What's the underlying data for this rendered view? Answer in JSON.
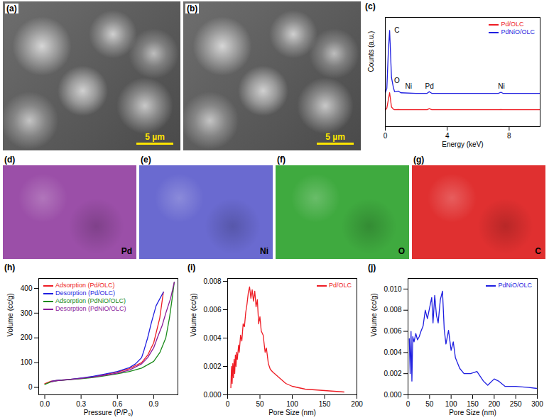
{
  "images": [
    {
      "panel": "(a)",
      "scale_bar": "5 µm"
    },
    {
      "panel": "(b)",
      "scale_bar": "5 µm"
    }
  ],
  "element_maps": [
    {
      "panel": "(d)",
      "label": "Pd",
      "color": "#9b4fa8"
    },
    {
      "panel": "(e)",
      "label": "Ni",
      "color": "#6a6ad0"
    },
    {
      "panel": "(f)",
      "label": "O",
      "color": "#3faa3f"
    },
    {
      "panel": "(g)",
      "label": "C",
      "color": "#e03030"
    }
  ],
  "chart_data": [
    {
      "panel": "(c)",
      "type": "line",
      "x_label": "Energy (keV)",
      "y_label": "Counts (a.u.)",
      "xlim": [
        0,
        10
      ],
      "xticks": [
        0,
        4,
        8
      ],
      "ylim": [
        0,
        100
      ],
      "tick_labels": "x",
      "legend": "top-right",
      "x": [
        0,
        0.1,
        0.2,
        0.28,
        0.4,
        0.52,
        0.6,
        0.85,
        1.0,
        2.0,
        2.7,
        2.84,
        3.0,
        4,
        6,
        7.3,
        7.47,
        7.6,
        8,
        10
      ],
      "series": [
        {
          "name": "Pd/OLC",
          "color": "#ee1c24",
          "values": [
            15,
            17,
            25,
            31,
            18,
            16,
            15.5,
            15.6,
            15.5,
            15.5,
            15.5,
            16.5,
            15.5,
            15.5,
            15.5,
            15.5,
            15.6,
            15.5,
            15.5,
            15.5
          ]
        },
        {
          "name": "PdNiO/OLC",
          "color": "#1f1fe0",
          "values": [
            31,
            35,
            70,
            88,
            45,
            36,
            32,
            32.5,
            31,
            30.5,
            30.5,
            32,
            30.5,
            30.5,
            30.5,
            30.5,
            31.5,
            30.5,
            30.5,
            30.5
          ]
        }
      ],
      "annotations": [
        {
          "text": "C",
          "x": 0.75,
          "y": 88
        },
        {
          "text": "O",
          "x": 0.75,
          "y": 42
        },
        {
          "text": "Ni",
          "x": 1.5,
          "y": 37
        },
        {
          "text": "Pd",
          "x": 2.85,
          "y": 37
        },
        {
          "text": "Ni",
          "x": 7.5,
          "y": 37
        }
      ]
    },
    {
      "panel": "(h)",
      "type": "line",
      "x_label": "Pressure (P/P₀)",
      "y_label": "Volume (cc/g)",
      "xlim": [
        -0.05,
        1.1
      ],
      "xticks": [
        {
          "value": 0,
          "label": "0.0"
        },
        {
          "value": 0.3,
          "label": "0.3"
        },
        {
          "value": 0.6,
          "label": "0.6"
        },
        {
          "value": 0.9,
          "label": "0.9"
        }
      ],
      "ylim": [
        -30,
        440
      ],
      "yticks": [
        0,
        100,
        200,
        300,
        400
      ],
      "legend": "top-left",
      "series": [
        {
          "name": "Adsorption (Pd/OLC)",
          "color": "#ee1c24",
          "x": [
            0,
            0.05,
            0.1,
            0.2,
            0.3,
            0.4,
            0.5,
            0.6,
            0.7,
            0.8,
            0.85,
            0.9,
            0.95,
            0.98
          ],
          "values": [
            15,
            25,
            28,
            32,
            37,
            43,
            52,
            62,
            76,
            100,
            130,
            180,
            280,
            385
          ]
        },
        {
          "name": "Desorption (Pd/OLC)",
          "color": "#1f1fe0",
          "x": [
            0.98,
            0.92,
            0.88,
            0.85,
            0.82,
            0.8,
            0.75,
            0.7,
            0.6,
            0.5,
            0.4,
            0.3,
            0.2,
            0.1,
            0.05
          ],
          "values": [
            385,
            330,
            260,
            200,
            150,
            120,
            95,
            80,
            64,
            54,
            45,
            38,
            32,
            28,
            24
          ]
        },
        {
          "name": "Adsorption (PdNiO/OLC)",
          "color": "#1a8a1a",
          "x": [
            0,
            0.05,
            0.1,
            0.2,
            0.3,
            0.4,
            0.5,
            0.6,
            0.7,
            0.8,
            0.9,
            0.95,
            1.0,
            1.03,
            1.05,
            1.07
          ],
          "values": [
            12,
            22,
            27,
            31,
            35,
            40,
            47,
            55,
            64,
            78,
            105,
            140,
            200,
            280,
            350,
            425
          ]
        },
        {
          "name": "Desorption (PdNiO/OLC)",
          "color": "#8a1a9a",
          "x": [
            1.07,
            1.04,
            1.0,
            0.97,
            0.93,
            0.9,
            0.85,
            0.8,
            0.7,
            0.6,
            0.5,
            0.4,
            0.3,
            0.2,
            0.1,
            0.05
          ],
          "values": [
            425,
            360,
            300,
            250,
            200,
            160,
            120,
            95,
            70,
            58,
            49,
            42,
            36,
            31,
            27,
            23
          ]
        }
      ]
    },
    {
      "panel": "(i)",
      "type": "line",
      "x_label": "Pore Size (nm)",
      "y_label": "Volume (cc/g)",
      "xlim": [
        0,
        200
      ],
      "xticks": [
        0,
        50,
        100,
        150,
        200
      ],
      "ylim": [
        0,
        0.0082
      ],
      "yticks": [
        {
          "value": 0,
          "label": "0.000"
        },
        {
          "value": 0.002,
          "label": "0.002"
        },
        {
          "value": 0.004,
          "label": "0.004"
        },
        {
          "value": 0.006,
          "label": "0.006"
        },
        {
          "value": 0.008,
          "label": "0.008"
        }
      ],
      "legend": "top-right",
      "series": [
        {
          "name": "Pd/OLC",
          "color": "#ee1c24",
          "x": [
            5,
            6,
            7,
            8,
            9,
            10,
            11,
            12,
            13,
            14,
            15,
            17,
            18,
            20,
            22,
            24,
            26,
            28,
            30,
            32,
            34,
            36,
            38,
            40,
            42,
            44,
            46,
            48,
            50,
            52,
            55,
            58,
            60,
            63,
            66,
            70,
            80,
            90,
            100,
            120,
            150,
            180
          ],
          "values": [
            0.0005,
            0.002,
            0.0008,
            0.0022,
            0.0012,
            0.0025,
            0.0015,
            0.0028,
            0.002,
            0.003,
            0.0025,
            0.0035,
            0.003,
            0.0042,
            0.0038,
            0.005,
            0.0048,
            0.0058,
            0.0064,
            0.0072,
            0.0076,
            0.0068,
            0.0074,
            0.0066,
            0.0073,
            0.0062,
            0.0067,
            0.005,
            0.0055,
            0.0045,
            0.0042,
            0.003,
            0.0033,
            0.0022,
            0.0018,
            0.0016,
            0.0012,
            0.0008,
            0.0006,
            0.0004,
            0.0003,
            0.0002
          ]
        }
      ]
    },
    {
      "panel": "(j)",
      "type": "line",
      "x_label": "Pore Size (nm)",
      "y_label": "Volume (cc/g)",
      "xlim": [
        0,
        300
      ],
      "xticks": [
        0,
        50,
        100,
        150,
        200,
        250,
        300
      ],
      "ylim": [
        0,
        0.011
      ],
      "yticks": [
        {
          "value": 0,
          "label": "0.000"
        },
        {
          "value": 0.002,
          "label": "0.002"
        },
        {
          "value": 0.004,
          "label": "0.004"
        },
        {
          "value": 0.006,
          "label": "0.006"
        },
        {
          "value": 0.008,
          "label": "0.008"
        },
        {
          "value": 0.01,
          "label": "0.010"
        }
      ],
      "legend": "top-right",
      "series": [
        {
          "name": "PdNiO/OLC",
          "color": "#1f1fe0",
          "x": [
            3,
            5,
            7,
            9,
            11,
            14,
            18,
            22,
            26,
            30,
            35,
            40,
            45,
            50,
            55,
            58,
            62,
            66,
            70,
            75,
            80,
            84,
            88,
            94,
            100,
            105,
            110,
            120,
            130,
            145,
            160,
            175,
            185,
            200,
            210,
            225,
            250,
            280,
            300
          ],
          "values": [
            0.0053,
            0.002,
            0.006,
            0.0013,
            0.0055,
            0.005,
            0.0058,
            0.0052,
            0.0055,
            0.006,
            0.0065,
            0.008,
            0.0072,
            0.0082,
            0.0092,
            0.0068,
            0.0094,
            0.0075,
            0.0068,
            0.009,
            0.0098,
            0.0062,
            0.0048,
            0.0061,
            0.0042,
            0.005,
            0.0035,
            0.0025,
            0.002,
            0.002,
            0.0022,
            0.0013,
            0.0009,
            0.0015,
            0.0013,
            0.0008,
            0.0008,
            0.0007,
            0.0006
          ]
        }
      ]
    }
  ]
}
